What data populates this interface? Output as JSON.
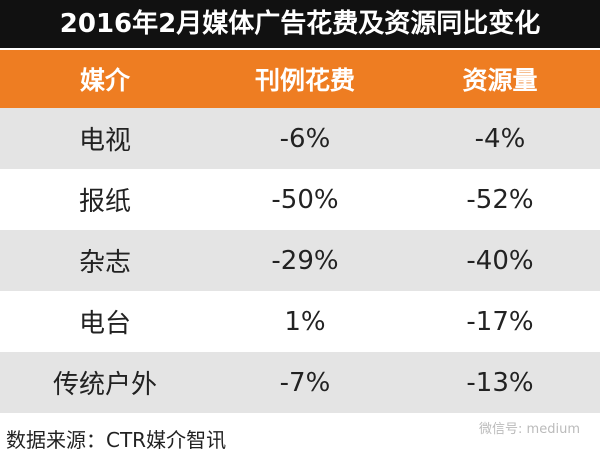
{
  "title": "2016年2月媒体广告花费及资源同比变化",
  "table": {
    "header": [
      "媒介",
      "刊例花费",
      "资源量"
    ],
    "rows": [
      [
        "电视",
        "-6%",
        "-4%"
      ],
      [
        "报纸",
        "-50%",
        "-52%"
      ],
      [
        "杂志",
        "-29%",
        "-40%"
      ],
      [
        "电台",
        "1%",
        "-17%"
      ],
      [
        "传统户外",
        "-7%",
        "-13%"
      ]
    ]
  },
  "watermark": "微信号: medium",
  "source": "数据来源：CTR媒介智讯"
}
